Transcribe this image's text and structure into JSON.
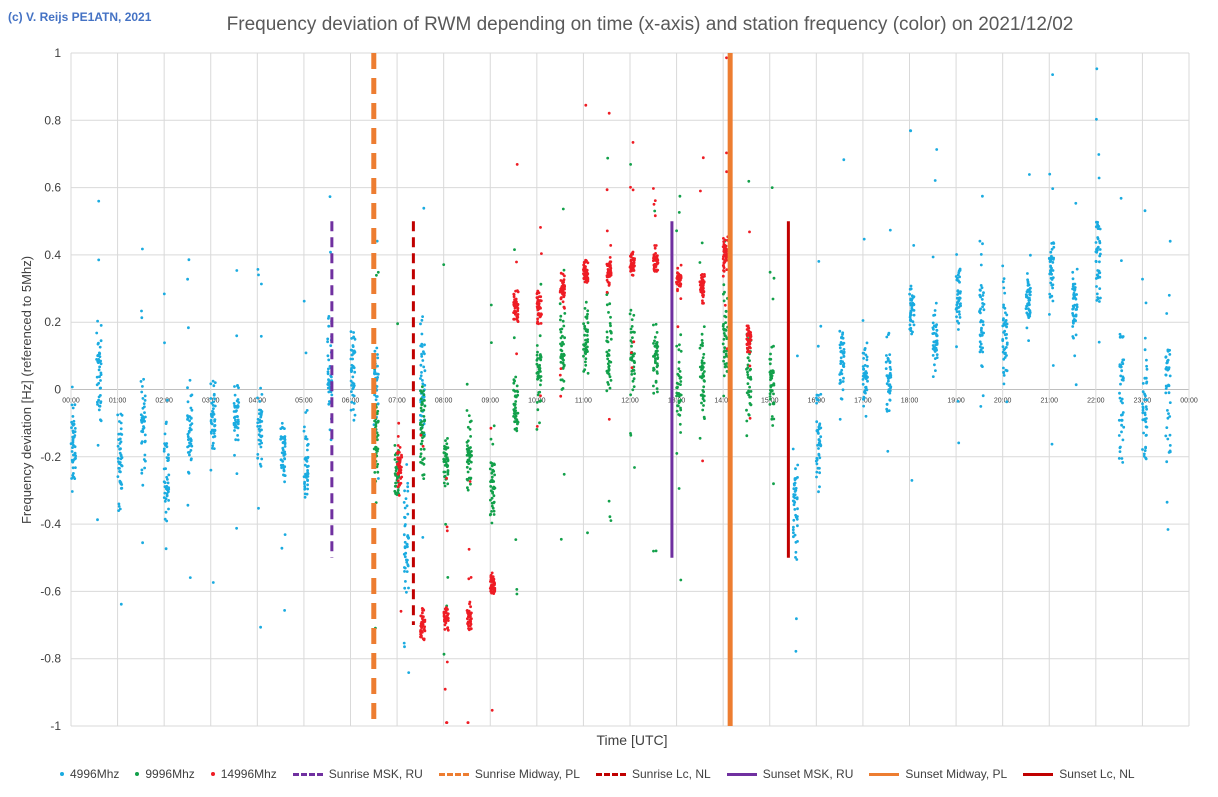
{
  "copyright": "(c) V. Reijs  PE1ATN, 2021",
  "chart_data": {
    "type": "scatter",
    "title": "Frequency deviation of RWM depending on time (x-axis) and station frequency (color) on 2021/12/02",
    "xlabel": "Time [UTC]",
    "ylabel": "Frequency deviation [Hz] (referenced to 5Mhz)",
    "xlim": [
      0,
      24
    ],
    "ylim": [
      -1,
      1
    ],
    "x_ticks": [
      "00:00",
      "01:00",
      "02:00",
      "03:00",
      "04:00",
      "05:00",
      "06:00",
      "07:00",
      "08:00",
      "09:00",
      "10:00",
      "11:00",
      "12:00",
      "13:00",
      "14:00",
      "15:00",
      "16:00",
      "17:00",
      "18:00",
      "19:00",
      "20:00",
      "21:00",
      "22:00",
      "23:00",
      "00:00"
    ],
    "y_ticks": [
      "-1",
      "-0.8",
      "-0.6",
      "-0.4",
      "-0.2",
      "0",
      "0.2",
      "0.4",
      "0.6",
      "0.8",
      "1"
    ],
    "grid": true,
    "legend_position": "bottom",
    "colors": {
      "f4996": "#1aabe0",
      "f9996": "#12a04a",
      "f14996": "#ee1c24",
      "msk": "#7030a0",
      "midway": "#ed7d31",
      "lc": "#c00000"
    },
    "series": [
      {
        "name": "4996Mhz",
        "kind": "points",
        "color": "#1aabe0",
        "clusters": [
          [
            0.05,
            -0.18,
            0.15
          ],
          [
            0.6,
            0.05,
            0.15
          ],
          [
            1.05,
            -0.2,
            0.15
          ],
          [
            1.55,
            -0.1,
            0.15
          ],
          [
            2.05,
            -0.25,
            0.15
          ],
          [
            2.55,
            -0.12,
            0.12
          ],
          [
            3.05,
            -0.08,
            0.12
          ],
          [
            3.55,
            -0.08,
            0.1
          ],
          [
            4.05,
            -0.12,
            0.1
          ],
          [
            4.55,
            -0.2,
            0.12
          ],
          [
            5.05,
            -0.22,
            0.12
          ],
          [
            5.55,
            0.05,
            0.15
          ],
          [
            6.05,
            0.05,
            0.12
          ],
          [
            6.55,
            0.02,
            0.12
          ],
          [
            7.2,
            -0.45,
            0.15
          ],
          [
            7.55,
            0.05,
            0.2
          ],
          [
            15.55,
            -0.35,
            0.15
          ],
          [
            16.05,
            -0.15,
            0.15
          ],
          [
            16.55,
            0.1,
            0.1
          ],
          [
            17.05,
            0.05,
            0.1
          ],
          [
            17.55,
            0.03,
            0.1
          ],
          [
            18.05,
            0.25,
            0.08
          ],
          [
            18.55,
            0.15,
            0.1
          ],
          [
            19.05,
            0.28,
            0.1
          ],
          [
            19.55,
            0.22,
            0.15
          ],
          [
            20.05,
            0.15,
            0.15
          ],
          [
            20.55,
            0.25,
            0.12
          ],
          [
            21.05,
            0.35,
            0.1
          ],
          [
            21.55,
            0.25,
            0.1
          ],
          [
            22.05,
            0.38,
            0.15
          ],
          [
            22.55,
            0.0,
            0.2
          ],
          [
            23.05,
            -0.05,
            0.2
          ],
          [
            23.55,
            0.0,
            0.2
          ]
        ]
      },
      {
        "name": "9996Mhz",
        "kind": "points",
        "color": "#12a04a",
        "clusters": [
          [
            6.55,
            -0.15,
            0.12
          ],
          [
            7.0,
            -0.25,
            0.1
          ],
          [
            7.55,
            -0.1,
            0.15
          ],
          [
            8.05,
            -0.22,
            0.08
          ],
          [
            8.55,
            -0.2,
            0.1
          ],
          [
            9.05,
            -0.28,
            0.1
          ],
          [
            9.55,
            -0.05,
            0.1
          ],
          [
            10.05,
            0.05,
            0.12
          ],
          [
            10.55,
            0.12,
            0.12
          ],
          [
            11.05,
            0.15,
            0.12
          ],
          [
            11.55,
            0.12,
            0.12
          ],
          [
            12.05,
            0.1,
            0.12
          ],
          [
            12.55,
            0.1,
            0.12
          ],
          [
            13.05,
            0.0,
            0.12
          ],
          [
            13.55,
            0.05,
            0.12
          ],
          [
            14.05,
            0.15,
            0.15
          ],
          [
            14.55,
            0.05,
            0.12
          ],
          [
            15.05,
            0.02,
            0.1
          ]
        ]
      },
      {
        "name": "14996Mhz",
        "kind": "points",
        "color": "#ee1c24",
        "clusters": [
          [
            7.05,
            -0.22,
            0.06
          ],
          [
            7.55,
            -0.7,
            0.05
          ],
          [
            8.05,
            -0.68,
            0.04
          ],
          [
            8.55,
            -0.68,
            0.04
          ],
          [
            9.05,
            -0.58,
            0.03
          ],
          [
            9.55,
            0.25,
            0.05
          ],
          [
            10.05,
            0.25,
            0.06
          ],
          [
            10.55,
            0.3,
            0.05
          ],
          [
            11.05,
            0.35,
            0.04
          ],
          [
            11.55,
            0.35,
            0.04
          ],
          [
            12.05,
            0.38,
            0.04
          ],
          [
            12.55,
            0.38,
            0.04
          ],
          [
            13.05,
            0.32,
            0.04
          ],
          [
            13.55,
            0.3,
            0.05
          ],
          [
            14.05,
            0.4,
            0.05
          ],
          [
            14.55,
            0.15,
            0.05
          ]
        ]
      },
      {
        "name": "Sunrise MSK, RU",
        "kind": "vline",
        "x": 5.6,
        "y": [
          -0.5,
          0.5
        ],
        "style": "dashed",
        "color": "#7030a0"
      },
      {
        "name": "Sunrise Midway, PL",
        "kind": "vline",
        "x": 6.5,
        "y": [
          -1,
          1
        ],
        "style": "dashed",
        "color": "#ed7d31"
      },
      {
        "name": "Sunrise Lc, NL",
        "kind": "vline",
        "x": 7.35,
        "y": [
          -0.7,
          0.5
        ],
        "style": "dashed",
        "color": "#c00000"
      },
      {
        "name": "Sunset MSK, RU",
        "kind": "vline",
        "x": 12.9,
        "y": [
          -0.5,
          0.5
        ],
        "style": "solid",
        "color": "#7030a0"
      },
      {
        "name": "Sunset Midway, PL",
        "kind": "vline",
        "x": 14.15,
        "y": [
          -1,
          1
        ],
        "style": "solid",
        "color": "#ed7d31"
      },
      {
        "name": "Sunset Lc, NL",
        "kind": "vline",
        "x": 15.4,
        "y": [
          -0.5,
          0.5
        ],
        "style": "solid",
        "color": "#c00000"
      }
    ]
  }
}
